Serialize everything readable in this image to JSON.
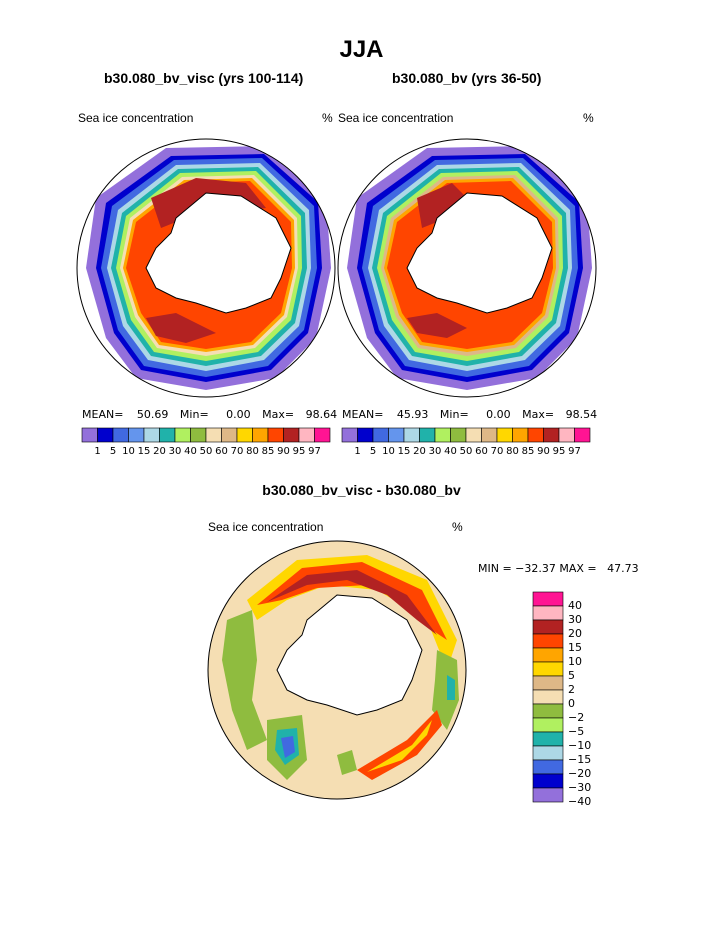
{
  "title": "JJA",
  "panels": [
    {
      "title": "b30.080_bv_visc (yrs 100-114)",
      "variable": "Sea ice concentration",
      "units": "%",
      "mean_label": "MEAN=",
      "mean": "50.69",
      "min_label": "Min=",
      "min": "0.00",
      "max_label": "Max=",
      "max": "98.64"
    },
    {
      "title": "b30.080_bv (yrs 36-50)",
      "variable": "Sea ice concentration",
      "units": "%",
      "mean_label": "MEAN=",
      "mean": "45.93",
      "min_label": "Min=",
      "min": "0.00",
      "max_label": "Max=",
      "max": "98.54"
    }
  ],
  "abs_colorbar": {
    "labels": [
      "1",
      "5",
      "10",
      "15",
      "20",
      "30",
      "40",
      "50",
      "60",
      "70",
      "80",
      "85",
      "90",
      "95",
      "97"
    ],
    "colors": [
      "#9370db",
      "#0000cd",
      "#4169e1",
      "#6495ed",
      "#add8e6",
      "#20b2aa",
      "#b0f060",
      "#8fbc3f",
      "#f5deb3",
      "#deb887",
      "#ffd700",
      "#ffa500",
      "#ff4500",
      "#b22222",
      "#ffb6c1",
      "#ff1493"
    ]
  },
  "diff": {
    "title": "b30.080_bv_visc - b30.080_bv",
    "variable": "Sea ice concentration",
    "units": "%",
    "minmax_text": "MIN = −32.37 MAX =   47.73",
    "colorbar_labels": [
      "40",
      "30",
      "20",
      "15",
      "10",
      "5",
      "2",
      "0",
      "−2",
      "−5",
      "−10",
      "−15",
      "−20",
      "−30",
      "−40"
    ],
    "colorbar_colors": [
      "#ff1493",
      "#ffb6c1",
      "#b22222",
      "#ff4500",
      "#ffa500",
      "#ffd700",
      "#deb887",
      "#f5deb3",
      "#8fbc3f",
      "#b0f060",
      "#20b2aa",
      "#add8e6",
      "#4169e1",
      "#0000cd",
      "#9370db"
    ]
  }
}
